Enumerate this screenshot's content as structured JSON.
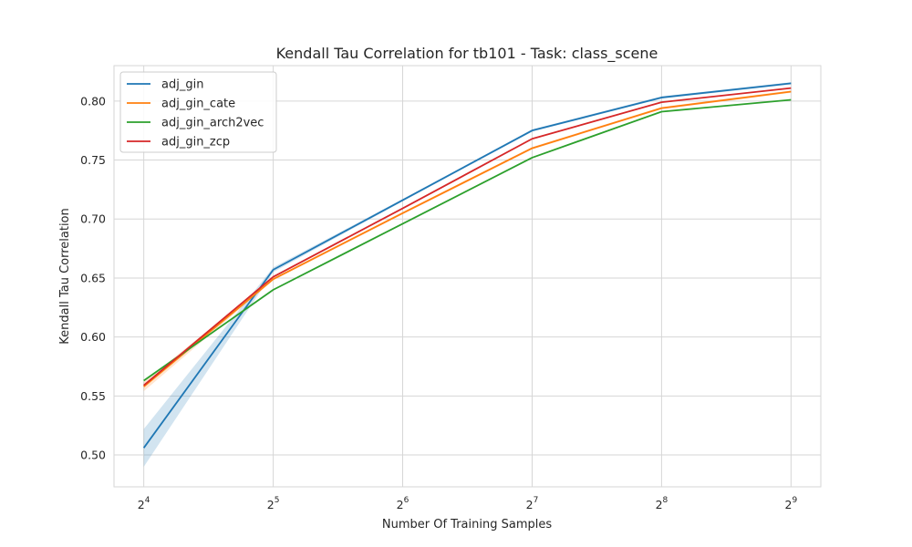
{
  "chart_data": {
    "type": "line",
    "title": "Kendall Tau Correlation for tb101 - Task: class_scene",
    "xlabel": "Number Of Training Samples",
    "ylabel": "Kendall Tau Correlation",
    "x_scale": "log2",
    "x": [
      16,
      32,
      64,
      128,
      256,
      512
    ],
    "x_tick_labels": [
      {
        "base": "2",
        "exp": "4"
      },
      {
        "base": "2",
        "exp": "5"
      },
      {
        "base": "2",
        "exp": "6"
      },
      {
        "base": "2",
        "exp": "7"
      },
      {
        "base": "2",
        "exp": "8"
      },
      {
        "base": "2",
        "exp": "9"
      }
    ],
    "y_ticks": [
      "0.50",
      "0.55",
      "0.60",
      "0.65",
      "0.70",
      "0.75",
      "0.80"
    ],
    "ylim": [
      0.473,
      0.83
    ],
    "grid": true,
    "legend_position": "top-left",
    "series": [
      {
        "name": "adj_gin",
        "color": "#1f77b4",
        "values": [
          0.506,
          0.657,
          0.716,
          0.775,
          0.803,
          0.815
        ],
        "band_lower": [
          0.49,
          0.655,
          0.715,
          0.774,
          0.802,
          0.814
        ],
        "band_upper": [
          0.522,
          0.659,
          0.717,
          0.776,
          0.804,
          0.816
        ]
      },
      {
        "name": "adj_gin_cate",
        "color": "#ff7f0e",
        "values": [
          0.558,
          0.649,
          0.705,
          0.76,
          0.794,
          0.808
        ],
        "band_lower": [
          0.554,
          0.648,
          0.704,
          0.759,
          0.793,
          0.807
        ],
        "band_upper": [
          0.562,
          0.65,
          0.706,
          0.761,
          0.795,
          0.809
        ]
      },
      {
        "name": "adj_gin_arch2vec",
        "color": "#2ca02c",
        "values": [
          0.563,
          0.64,
          0.696,
          0.752,
          0.791,
          0.801
        ]
      },
      {
        "name": "adj_gin_zcp",
        "color": "#d62728",
        "values": [
          0.559,
          0.651,
          0.709,
          0.768,
          0.799,
          0.811
        ]
      }
    ]
  }
}
